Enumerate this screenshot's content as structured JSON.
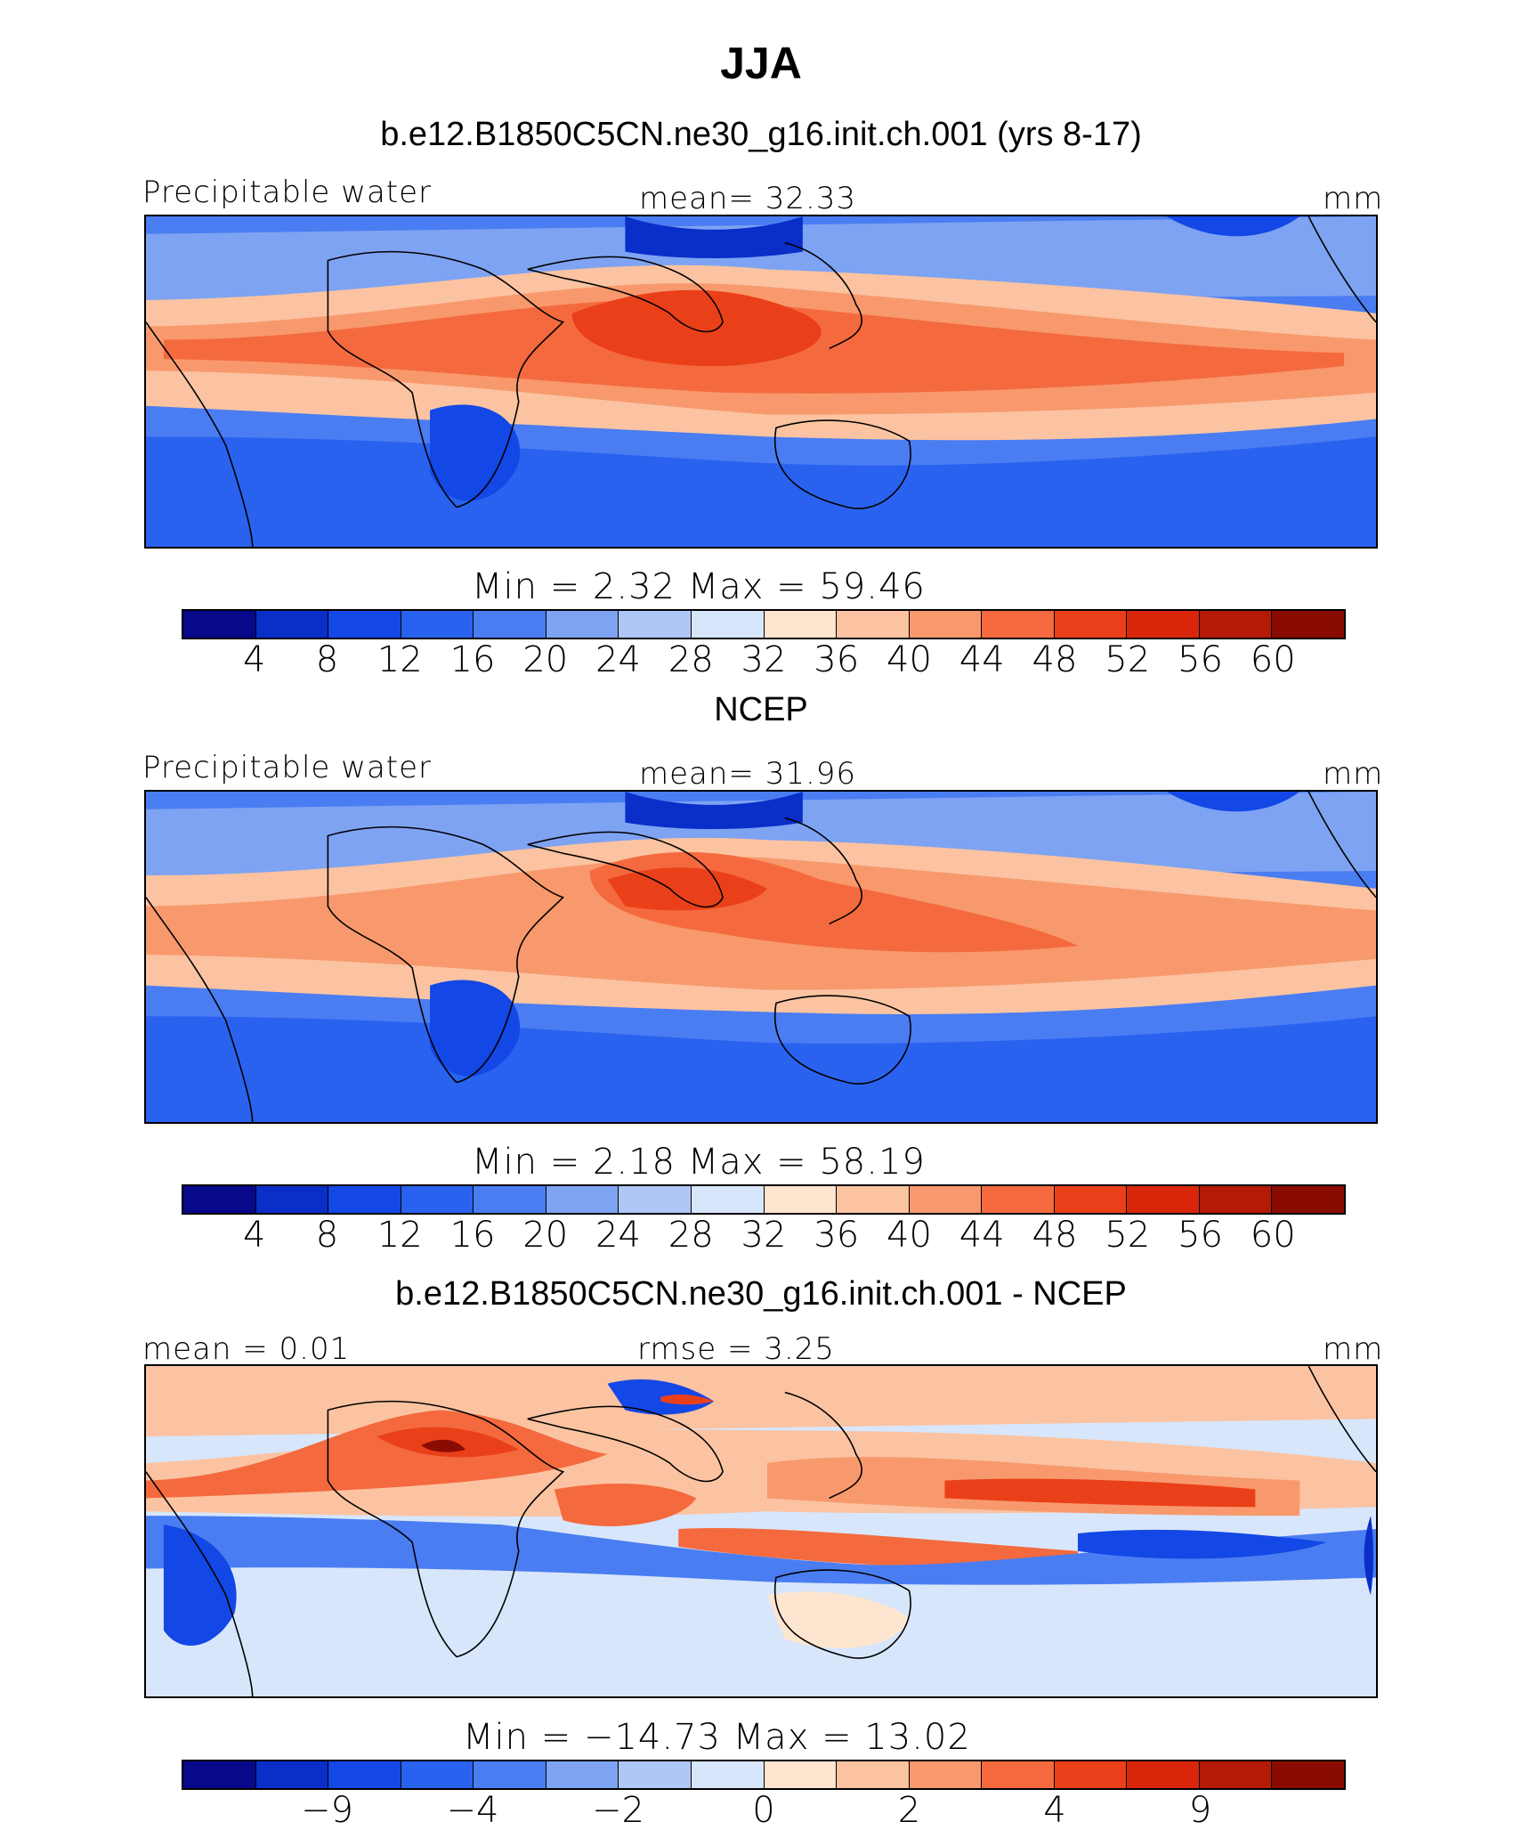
{
  "title": "JJA",
  "palette": [
    "#08088a",
    "#0a2ec8",
    "#1347e6",
    "#2a62f0",
    "#4a7df2",
    "#7ea3f2",
    "#aec7f7",
    "#d8e6fb",
    "#fde5cf",
    "#fbc3a1",
    "#f8996d",
    "#f46a3e",
    "#ea401a",
    "#d9260b",
    "#b41a06",
    "#8a0b02"
  ],
  "land_color": "#000000",
  "panels": [
    {
      "title": "b.e12.B1850C5CN.ne30_g16.init.ch.001 (yrs 8-17)",
      "left_label": "Precipitable water",
      "center_label": "mean=   32.33",
      "right_label": "mm",
      "minmax": "Min  =     2.32  Max  =    59.46",
      "ticks": [
        "4",
        "8",
        "12",
        "16",
        "20",
        "24",
        "28",
        "32",
        "36",
        "40",
        "44",
        "48",
        "52",
        "56",
        "60"
      ]
    },
    {
      "title": "NCEP",
      "left_label": "Precipitable water",
      "center_label": "mean=   31.96",
      "right_label": "mm",
      "minmax": "Min  =     2.18  Max  =    58.19",
      "ticks": [
        "4",
        "8",
        "12",
        "16",
        "20",
        "24",
        "28",
        "32",
        "36",
        "40",
        "44",
        "48",
        "52",
        "56",
        "60"
      ]
    },
    {
      "title": "b.e12.B1850C5CN.ne30_g16.init.ch.001 - NCEP",
      "left_label": "mean  =     0.01",
      "center_label": "rmse  =      3.25",
      "right_label": "mm",
      "minmax": "Min  = −14.73  Max  =    13.02",
      "ticks": [
        "−9",
        "−4",
        "−2",
        "0",
        "2",
        "4",
        "9"
      ]
    }
  ],
  "chart_data": [
    {
      "type": "heatmap",
      "title": "b.e12.B1850C5CN.ne30_g16.init.ch.001 (yrs 8-17)",
      "variable": "Precipitable water",
      "units": "mm",
      "mean": 32.33,
      "min": 2.32,
      "max": 59.46,
      "contour_levels": [
        4,
        8,
        12,
        16,
        20,
        24,
        28,
        32,
        36,
        40,
        44,
        48,
        52,
        56,
        60
      ]
    },
    {
      "type": "heatmap",
      "title": "NCEP",
      "variable": "Precipitable water",
      "units": "mm",
      "mean": 31.96,
      "min": 2.18,
      "max": 58.19,
      "contour_levels": [
        4,
        8,
        12,
        16,
        20,
        24,
        28,
        32,
        36,
        40,
        44,
        48,
        52,
        56,
        60
      ]
    },
    {
      "type": "heatmap",
      "title": "b.e12.B1850C5CN.ne30_g16.init.ch.001 - NCEP",
      "units": "mm",
      "mean": 0.01,
      "rmse": 3.25,
      "min": -14.73,
      "max": 13.02,
      "contour_levels": [
        -9,
        -4,
        -2,
        0,
        2,
        4,
        9
      ]
    }
  ]
}
